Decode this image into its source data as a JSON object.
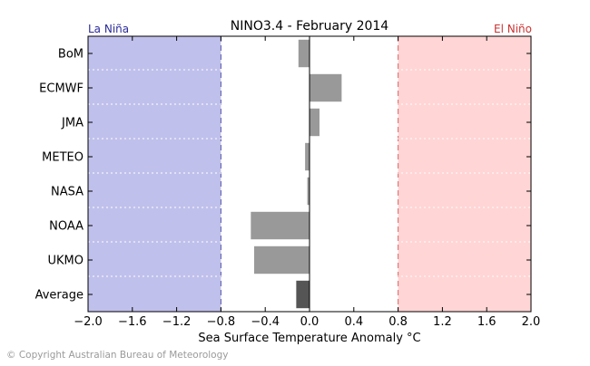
{
  "chart_data": {
    "type": "bar",
    "orientation": "horizontal",
    "title": "NINO3.4 - February 2014",
    "xlabel": "Sea Surface Temperature Anomaly °C",
    "ylabel": "",
    "xlim": [
      -2.0,
      2.0
    ],
    "xticks": [
      "−2.0",
      "−1.6",
      "−1.2",
      "−0.8",
      "−0.4",
      "0.0",
      "0.4",
      "0.8",
      "1.2",
      "1.6",
      "2.0"
    ],
    "categories": [
      "BoM",
      "ECMWF",
      "JMA",
      "METEO",
      "NASA",
      "NOAA",
      "UKMO",
      "Average"
    ],
    "values": [
      -0.1,
      0.29,
      0.09,
      -0.04,
      -0.02,
      -0.53,
      -0.5,
      -0.12
    ],
    "grid": false,
    "bar_color": "#999999",
    "average_bar_color": "#555555",
    "thresholds": {
      "la_nina": {
        "label": "La Niña",
        "value": -0.8,
        "color": "#2b2b9a",
        "fill": "#c0c0ec"
      },
      "el_nino": {
        "label": "El Niño",
        "value": 0.8,
        "color": "#cc3333",
        "fill": "#ffd5d5"
      }
    }
  },
  "footer": {
    "copyright": "© Copyright Australian Bureau of Meteorology"
  }
}
